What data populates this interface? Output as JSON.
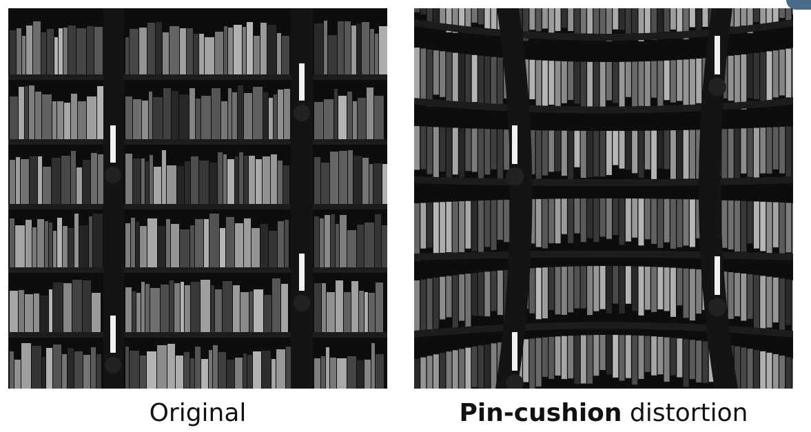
{
  "captions": {
    "left": "Original",
    "right_bold": "Pin-cushion",
    "right_rest": " distortion"
  },
  "panels": {
    "left_icon": "bookshelf-image",
    "right_icon": "distorted-bookshelf-image"
  },
  "colors": {
    "background": "#0d0d0d",
    "shelf": "#1c1c1c",
    "pillar": "#141414",
    "book_light": "#bdbdbd",
    "book_dark": "#2a2a2a",
    "candle": "#f2f2f2",
    "corner_accent": "#4a6a8a"
  }
}
